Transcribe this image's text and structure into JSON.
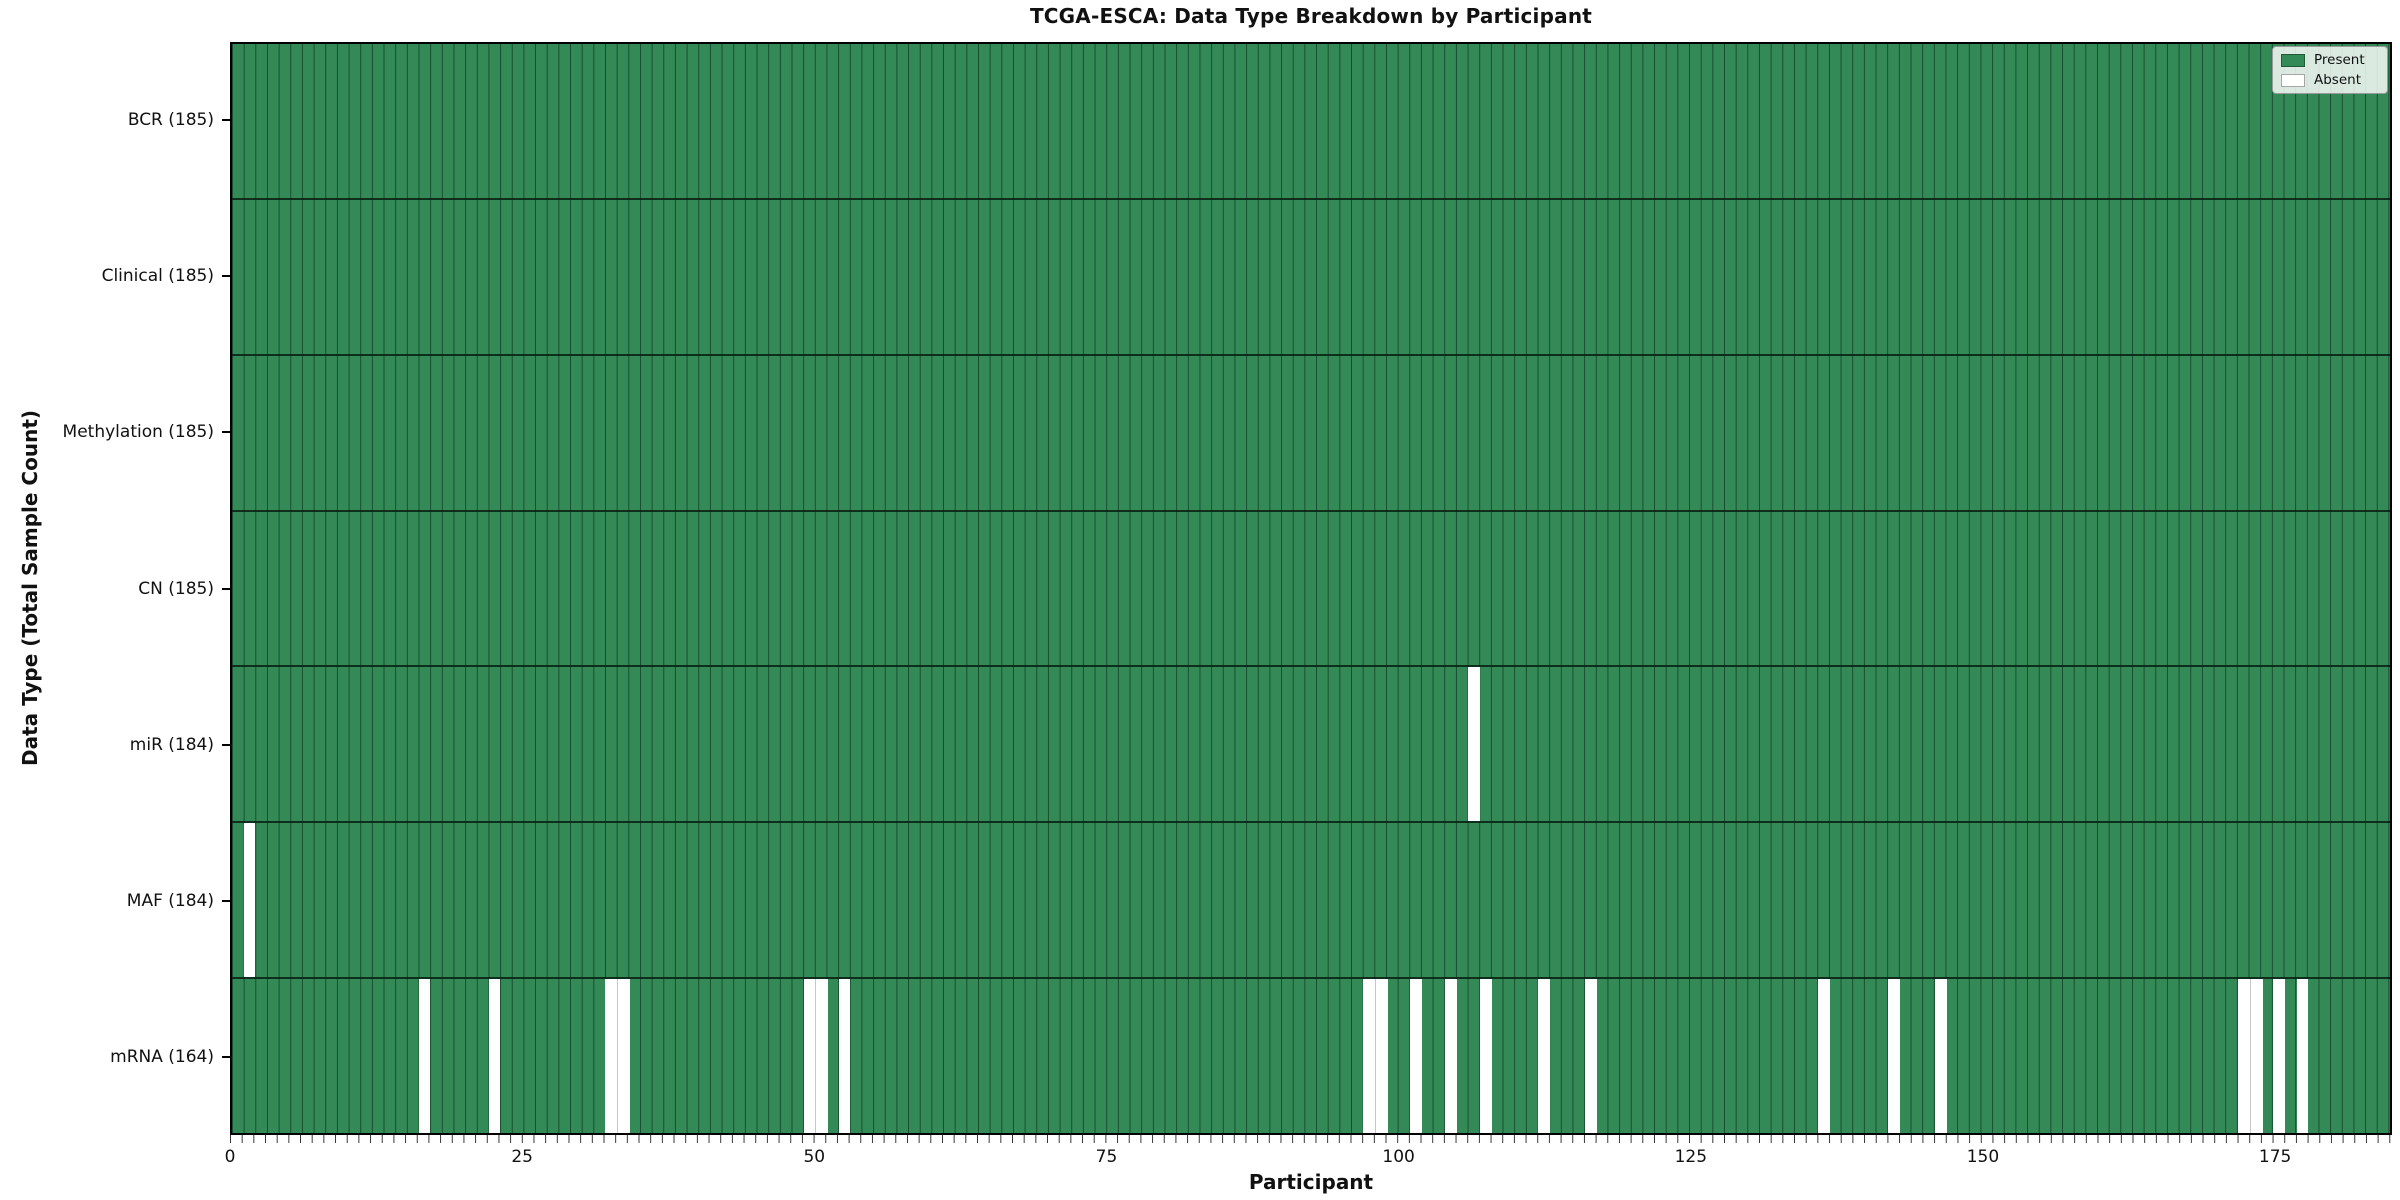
{
  "title": "TCGA-ESCA: Data Type Breakdown by Participant",
  "axes": {
    "xlabel": "Participant",
    "ylabel": "Data Type (Total Sample Count)",
    "xticks": [
      0,
      25,
      50,
      75,
      100,
      125,
      150,
      175
    ]
  },
  "legend": {
    "items": [
      {
        "label": "Present",
        "color": "#348a57"
      },
      {
        "label": "Absent",
        "color": "#ffffff"
      }
    ]
  },
  "colors": {
    "present": "#348a57",
    "absent": "#ffffff",
    "cell_edge": "rgba(6,40,22,0.62)",
    "row_divider": "rgba(8,30,18,0.85)",
    "spine": "#000000"
  },
  "chart_data": {
    "type": "heatmap",
    "title": "TCGA-ESCA: Data Type Breakdown by Participant",
    "xlabel": "Participant",
    "ylabel": "Data Type (Total Sample Count)",
    "n_participants": 185,
    "x_range": [
      0,
      185
    ],
    "xticks": [
      0,
      25,
      50,
      75,
      100,
      125,
      150,
      175
    ],
    "legend_entries": [
      "Present",
      "Absent"
    ],
    "legend_position": "upper right",
    "grid": "per-participant vertical cell edges",
    "rows": [
      {
        "label": "BCR (185)",
        "data_type": "BCR",
        "present_count": 185,
        "absent_participants": []
      },
      {
        "label": "Clinical (185)",
        "data_type": "Clinical",
        "present_count": 185,
        "absent_participants": []
      },
      {
        "label": "Methylation (185)",
        "data_type": "Methylation",
        "present_count": 185,
        "absent_participants": []
      },
      {
        "label": "CN (185)",
        "data_type": "CN",
        "present_count": 185,
        "absent_participants": []
      },
      {
        "label": "miR (184)",
        "data_type": "miR",
        "present_count": 184,
        "absent_participants": [
          106
        ]
      },
      {
        "label": "MAF (184)",
        "data_type": "MAF",
        "present_count": 184,
        "absent_participants": [
          1
        ]
      },
      {
        "label": "mRNA (164)",
        "data_type": "mRNA",
        "present_count": 164,
        "absent_participants": [
          16,
          22,
          32,
          33,
          49,
          50,
          52,
          97,
          98,
          101,
          104,
          107,
          112,
          116,
          136,
          142,
          146,
          172,
          173,
          175,
          177
        ]
      }
    ]
  }
}
